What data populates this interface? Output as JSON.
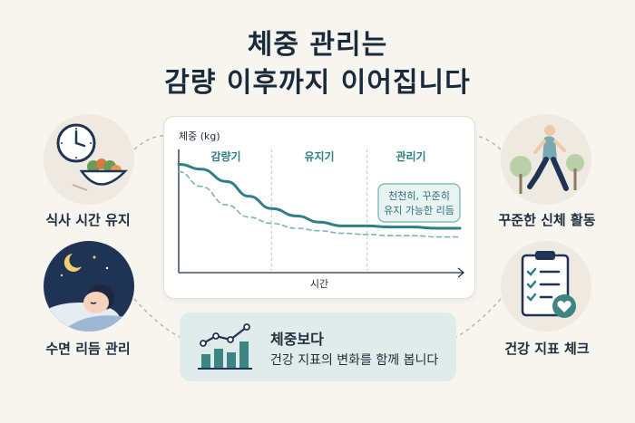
{
  "title": {
    "line1": "체중 관리는",
    "line2": "감량 이후까지 이어집니다"
  },
  "chart": {
    "y_axis_label": "체중 (kg)",
    "x_axis_label": "시간",
    "phases": [
      "감량기",
      "유지기",
      "관리기"
    ],
    "callout": [
      "천천히, 꾸준히",
      "유지 가능한 리듬"
    ]
  },
  "chart_data": {
    "type": "line",
    "title": "",
    "xlabel": "시간",
    "ylabel": "체중 (kg)",
    "ylim": [
      0,
      100
    ],
    "xlim": [
      0,
      100
    ],
    "grid": false,
    "x": [
      0,
      8,
      17,
      25,
      33,
      42,
      50,
      58,
      67,
      75,
      83,
      92,
      100
    ],
    "series": [
      {
        "values": [
          88,
          84,
          74,
          62,
          52,
          46,
          41,
          38,
          38,
          37,
          37,
          36,
          36
        ]
      },
      {
        "values": [
          82,
          70,
          55,
          45,
          40,
          36,
          34,
          32,
          31,
          30,
          30,
          29,
          29
        ]
      }
    ],
    "series_styles": [
      "solid",
      "dashed"
    ],
    "phase_boundaries": [
      33,
      67
    ]
  },
  "habits": [
    {
      "label": "식사 시간 유지",
      "icon": "clock-and-meal-icon"
    },
    {
      "label": "수면 리듬 관리",
      "icon": "sleeping-person-icon"
    },
    {
      "label": "꾸준한 신체 활동",
      "icon": "walking-person-icon"
    },
    {
      "label": "건강 지표 체크",
      "icon": "health-checklist-icon"
    }
  ],
  "info": {
    "line1": "체중보다",
    "line2": "건강 지표의 변화를 함께 봅니다",
    "icon": "growth-chart-icon"
  },
  "colors": {
    "accent": "#2f7f84",
    "dashed": "#7fb2b2",
    "navy": "#1f3354",
    "background": "#f7f5f0",
    "box": "#dfece9"
  }
}
